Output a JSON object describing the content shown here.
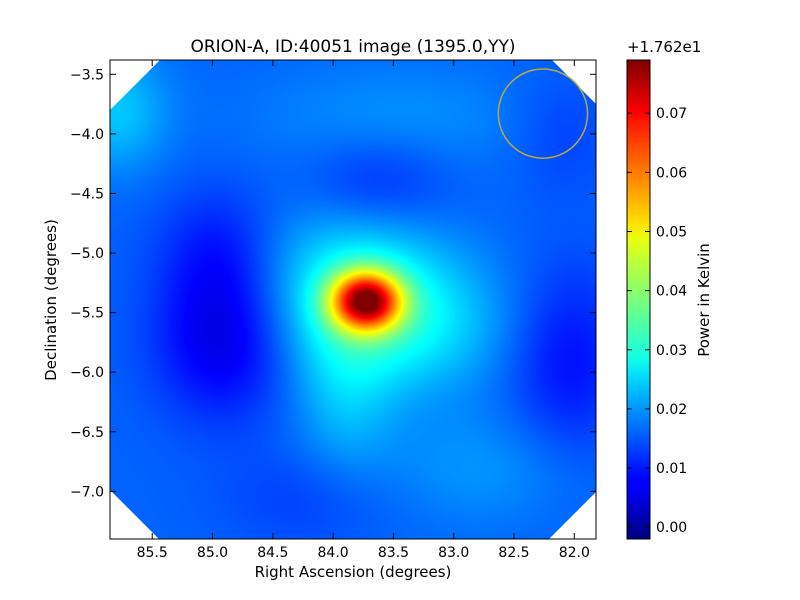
{
  "chart_data": {
    "type": "heatmap",
    "title": "ORION-A, ID:40051 image (1395.0,YY)",
    "xlabel": "Right Ascension (degrees)",
    "ylabel": "Declination (degrees)",
    "xlim": [
      85.85,
      81.82
    ],
    "ylim": [
      -7.4,
      -3.38
    ],
    "x_ticks": [
      85.5,
      85.0,
      84.5,
      84.0,
      83.5,
      83.0,
      82.5,
      82.0
    ],
    "x_tick_labels": [
      "85.5",
      "85.0",
      "84.5",
      "84.0",
      "83.5",
      "83.0",
      "82.5",
      "82.0"
    ],
    "y_ticks": [
      -3.5,
      -4.0,
      -4.5,
      -5.0,
      -5.5,
      -6.0,
      -6.5,
      -7.0
    ],
    "y_tick_labels": [
      "−3.5",
      "−4.0",
      "−4.5",
      "−5.0",
      "−5.5",
      "−6.0",
      "−6.5",
      "−7.0"
    ],
    "colorbar": {
      "label": "Power in Kelvin",
      "offset_text": "+1.762e1",
      "range": [
        -0.002,
        0.079
      ],
      "ticks": [
        0.0,
        0.01,
        0.02,
        0.03,
        0.04,
        0.05,
        0.06,
        0.07
      ],
      "tick_labels": [
        "0.00",
        "0.01",
        "0.02",
        "0.03",
        "0.04",
        "0.05",
        "0.06",
        "0.07"
      ],
      "colormap": "jet"
    },
    "background_level": 0.016,
    "features": [
      {
        "ra": 83.73,
        "dec": -5.4,
        "amplitude": 0.05,
        "sigma_ra": 0.2,
        "sigma_dec": 0.17
      },
      {
        "ra": 83.85,
        "dec": -5.3,
        "amplitude": 0.012,
        "sigma_ra": 0.55,
        "sigma_dec": 0.5
      },
      {
        "ra": 83.3,
        "dec": -5.6,
        "amplitude": 0.008,
        "sigma_ra": 0.55,
        "sigma_dec": 0.4
      },
      {
        "ra": 83.9,
        "dec": -6.2,
        "amplitude": 0.006,
        "sigma_ra": 0.3,
        "sigma_dec": 0.5
      },
      {
        "ra": 85.8,
        "dec": -3.8,
        "amplitude": 0.008,
        "sigma_ra": 0.3,
        "sigma_dec": 0.35
      },
      {
        "ra": 82.8,
        "dec": -6.8,
        "amplitude": 0.004,
        "sigma_ra": 0.6,
        "sigma_dec": 0.35
      },
      {
        "ra": 83.5,
        "dec": -3.9,
        "amplitude": 0.004,
        "sigma_ra": 0.8,
        "sigma_dec": 0.35
      },
      {
        "ra": 84.9,
        "dec": -5.75,
        "amplitude": -0.01,
        "sigma_ra": 0.4,
        "sigma_dec": 0.45
      },
      {
        "ra": 84.95,
        "dec": -5.0,
        "amplitude": -0.006,
        "sigma_ra": 0.35,
        "sigma_dec": 0.4
      },
      {
        "ra": 83.65,
        "dec": -4.4,
        "amplitude": -0.006,
        "sigma_ra": 0.45,
        "sigma_dec": 0.3
      },
      {
        "ra": 82.05,
        "dec": -5.9,
        "amplitude": -0.007,
        "sigma_ra": 0.35,
        "sigma_dec": 0.55
      },
      {
        "ra": 82.1,
        "dec": -4.0,
        "amplitude": -0.003,
        "sigma_ra": 0.3,
        "sigma_dec": 0.35
      },
      {
        "ra": 84.2,
        "dec": -7.05,
        "amplitude": -0.003,
        "sigma_ra": 0.5,
        "sigma_dec": 0.3
      }
    ],
    "beam_circle": {
      "ra": 82.26,
      "dec": -3.83,
      "radius_deg": 0.37,
      "color": "#b8a83a"
    },
    "masked_corner_color": "#ffffff",
    "grid": false
  }
}
